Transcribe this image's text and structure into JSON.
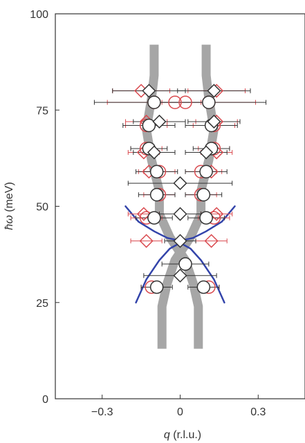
{
  "chart_data": {
    "type": "scatter",
    "title": "",
    "xlabel": {
      "symbol": "q",
      "unit": "(r.l.u.)"
    },
    "ylabel": {
      "symbol": "ħω",
      "unit": "(meV)"
    },
    "xlim": [
      -0.48,
      0.48
    ],
    "ylim": [
      0,
      100
    ],
    "xticks": [
      {
        "value": -0.3,
        "label": "−0.3"
      },
      {
        "value": 0,
        "label": "0"
      },
      {
        "value": 0.3,
        "label": "0.3"
      }
    ],
    "yticks": [
      {
        "value": 0,
        "label": "0"
      },
      {
        "value": 25,
        "label": "25"
      },
      {
        "value": 50,
        "label": "50"
      },
      {
        "value": 75,
        "label": "75"
      },
      {
        "value": 100,
        "label": "100"
      }
    ],
    "grid": false,
    "legend": "none",
    "colors": {
      "black_marker": "#333333",
      "red_marker": "#d9494e",
      "grey_band": "#a6a6a6",
      "blue_curve": "#3344aa"
    },
    "series": [
      {
        "marker": "circle",
        "color": "black",
        "points": [
          {
            "x": -0.1,
            "y": 77,
            "xerr": 0.23
          },
          {
            "x": 0.11,
            "y": 77,
            "xerr": 0.22
          },
          {
            "x": -0.12,
            "y": 71,
            "xerr": 0.1
          },
          {
            "x": 0.12,
            "y": 71,
            "xerr": 0.1
          },
          {
            "x": -0.12,
            "y": 65,
            "xerr": 0.07
          },
          {
            "x": 0.12,
            "y": 65,
            "xerr": 0.07
          },
          {
            "x": -0.09,
            "y": 59,
            "xerr": 0.08
          },
          {
            "x": 0.1,
            "y": 59,
            "xerr": 0.08
          },
          {
            "x": -0.09,
            "y": 53,
            "xerr": 0.07
          },
          {
            "x": 0.09,
            "y": 53,
            "xerr": 0.07
          },
          {
            "x": -0.1,
            "y": 47,
            "xerr": 0.07
          },
          {
            "x": 0.1,
            "y": 47,
            "xerr": 0.07
          },
          {
            "x": 0.02,
            "y": 35,
            "xerr": 0.09
          },
          {
            "x": -0.09,
            "y": 29,
            "xerr": 0.06
          },
          {
            "x": 0.09,
            "y": 29,
            "xerr": 0.06
          }
        ]
      },
      {
        "marker": "diamond",
        "color": "black",
        "points": [
          {
            "x": -0.12,
            "y": 80,
            "xerr": 0.14
          },
          {
            "x": 0.13,
            "y": 80,
            "xerr": 0.14
          },
          {
            "x": -0.08,
            "y": 72,
            "xerr": 0.1
          },
          {
            "x": 0.13,
            "y": 72,
            "xerr": 0.1
          },
          {
            "x": -0.1,
            "y": 64,
            "xerr": 0.08
          },
          {
            "x": 0.1,
            "y": 64,
            "xerr": 0.08
          },
          {
            "x": 0.0,
            "y": 56,
            "xerr": 0.2
          },
          {
            "x": 0.0,
            "y": 48,
            "xerr": 0.08
          },
          {
            "x": 0.0,
            "y": 41,
            "xerr": 0.06
          },
          {
            "x": 0.0,
            "y": 32,
            "xerr": 0.14
          }
        ]
      },
      {
        "marker": "circle",
        "color": "red",
        "points": [
          {
            "x": -0.1,
            "y": 77,
            "xerr": 0.18
          },
          {
            "x": -0.02,
            "y": 77,
            "xerr": 0
          },
          {
            "x": 0.02,
            "y": 77,
            "xerr": 0
          },
          {
            "x": 0.11,
            "y": 77,
            "xerr": 0.18
          },
          {
            "x": -0.13,
            "y": 71,
            "xerr": 0.08
          },
          {
            "x": 0.13,
            "y": 71,
            "xerr": 0.08
          },
          {
            "x": -0.13,
            "y": 65,
            "xerr": 0.06
          },
          {
            "x": 0.13,
            "y": 65,
            "xerr": 0.06
          },
          {
            "x": -0.08,
            "y": 59,
            "xerr": 0.06
          },
          {
            "x": 0.08,
            "y": 59,
            "xerr": 0.06
          },
          {
            "x": -0.08,
            "y": 53,
            "xerr": 0.06
          },
          {
            "x": 0.08,
            "y": 53,
            "xerr": 0.06
          },
          {
            "x": -0.13,
            "y": 47,
            "xerr": 0.06
          },
          {
            "x": 0.13,
            "y": 47,
            "xerr": 0.06
          },
          {
            "x": -0.11,
            "y": 29,
            "xerr": 0.04
          },
          {
            "x": 0.11,
            "y": 29,
            "xerr": 0.04
          }
        ]
      },
      {
        "marker": "diamond",
        "color": "red",
        "points": [
          {
            "x": -0.15,
            "y": 80,
            "xerr": 0.11
          },
          {
            "x": 0.14,
            "y": 80,
            "xerr": 0.11
          },
          {
            "x": -0.13,
            "y": 72,
            "xerr": 0.08
          },
          {
            "x": 0.14,
            "y": 72,
            "xerr": 0.08
          },
          {
            "x": -0.14,
            "y": 64,
            "xerr": 0.06
          },
          {
            "x": 0.14,
            "y": 64,
            "xerr": 0.06
          },
          {
            "x": -0.12,
            "y": 59,
            "xerr": 0.04
          },
          {
            "x": 0.12,
            "y": 59,
            "xerr": 0.04
          },
          {
            "x": -0.14,
            "y": 48,
            "xerr": 0.06
          },
          {
            "x": 0.14,
            "y": 48,
            "xerr": 0.06
          },
          {
            "x": -0.13,
            "y": 41,
            "xerr": 0.06
          },
          {
            "x": 0.12,
            "y": 41,
            "xerr": 0.06
          }
        ]
      }
    ],
    "bands": [
      {
        "name": "",
        "color": "grey",
        "points": [
          [
            -0.1,
            92
          ],
          [
            -0.1,
            84
          ],
          [
            -0.11,
            78
          ],
          [
            -0.13,
            70
          ],
          [
            -0.11,
            62
          ],
          [
            -0.08,
            54
          ],
          [
            -0.08,
            48
          ],
          [
            -0.04,
            42
          ],
          [
            0.02,
            36
          ],
          [
            0.05,
            30
          ],
          [
            0.07,
            24
          ],
          [
            0.07,
            18
          ],
          [
            0.07,
            13
          ]
        ]
      },
      {
        "name": "",
        "color": "grey",
        "points": [
          [
            0.1,
            92
          ],
          [
            0.1,
            84
          ],
          [
            0.11,
            78
          ],
          [
            0.13,
            70
          ],
          [
            0.11,
            62
          ],
          [
            0.08,
            54
          ],
          [
            0.08,
            48
          ],
          [
            0.04,
            42
          ],
          [
            -0.02,
            36
          ],
          [
            -0.05,
            30
          ],
          [
            -0.07,
            24
          ],
          [
            -0.07,
            18
          ],
          [
            -0.07,
            13
          ]
        ]
      }
    ],
    "curves": [
      {
        "name": "",
        "color": "blue",
        "points": [
          [
            -0.21,
            50
          ],
          [
            -0.16,
            46
          ],
          [
            -0.1,
            43.5
          ],
          [
            -0.05,
            41.8
          ],
          [
            0,
            41
          ],
          [
            0.05,
            41.8
          ],
          [
            0.1,
            43.5
          ],
          [
            0.16,
            46
          ],
          [
            0.21,
            50
          ]
        ]
      },
      {
        "name": "",
        "color": "blue",
        "points": [
          [
            -0.17,
            25
          ],
          [
            -0.13,
            31
          ],
          [
            -0.08,
            36
          ],
          [
            -0.04,
            39
          ],
          [
            0,
            40.5
          ],
          [
            0.04,
            39
          ],
          [
            0.08,
            36
          ],
          [
            0.13,
            31
          ],
          [
            0.17,
            25
          ]
        ]
      }
    ]
  }
}
